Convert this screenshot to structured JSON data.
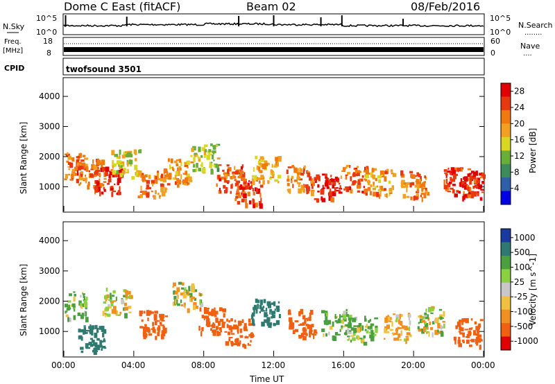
{
  "header": {
    "title": "Dome C East (fitACF)",
    "beam": "Beam 02",
    "date": "08/Feb/2016"
  },
  "nsky_panel": {
    "left_label": "N.Sky",
    "right_label": "N.Search",
    "right_dots": "........",
    "ticks": [
      "10^5",
      "10^0"
    ]
  },
  "freq_panel": {
    "left_label_top": "Freq.",
    "left_label_unit": "[MHz]",
    "left_ticks": [
      "18",
      "8"
    ],
    "right_label": "Nave",
    "right_dots": "....",
    "right_ticks": [
      "60",
      "0"
    ]
  },
  "cpid_panel": {
    "label": "CPID",
    "program": "twofsound 3501"
  },
  "colors": {
    "power_scale": [
      "#0000e6",
      "#2e5fa8",
      "#3d8a5a",
      "#6aae3a",
      "#d8d820",
      "#f2a020",
      "#f07a10",
      "#e83810",
      "#e00000"
    ],
    "velocity_scale": [
      "#e00000",
      "#f06010",
      "#f09020",
      "#f0c040",
      "#c8c8c8",
      "#8ad040",
      "#4aa040",
      "#2e7a70",
      "#1a3aa0"
    ]
  },
  "chart_data": [
    {
      "type": "heatmap",
      "title": "",
      "xlabel": "Time UT",
      "ylabel": "Slant Range [km]",
      "x_ticks": [
        "00:00",
        "04:00",
        "08:00",
        "12:00",
        "16:00",
        "20:00",
        "00:00"
      ],
      "y_ticks": [
        "1000",
        "2000",
        "3000",
        "4000"
      ],
      "x_range_hours": [
        0,
        24
      ],
      "y_range_km": [
        180,
        4600
      ],
      "colorbar_label": "Power [dB]",
      "colorbar_ticks": [
        "4",
        "8",
        "12",
        "16",
        "20",
        "24",
        "28"
      ],
      "colorbar_range": [
        0,
        30
      ],
      "sample_points": [
        {
          "t": 0.5,
          "r": 1700,
          "v": 22
        },
        {
          "t": 1.5,
          "r": 1500,
          "v": 24
        },
        {
          "t": 2.5,
          "r": 1250,
          "v": 26
        },
        {
          "t": 3.5,
          "r": 1800,
          "v": 16
        },
        {
          "t": 5.0,
          "r": 1100,
          "v": 22
        },
        {
          "t": 6.5,
          "r": 1500,
          "v": 20
        },
        {
          "t": 8.0,
          "r": 2000,
          "v": 14
        },
        {
          "t": 9.5,
          "r": 1300,
          "v": 24
        },
        {
          "t": 10.5,
          "r": 900,
          "v": 26
        },
        {
          "t": 11.5,
          "r": 1600,
          "v": 18
        },
        {
          "t": 13.5,
          "r": 1300,
          "v": 22
        },
        {
          "t": 15.0,
          "r": 1000,
          "v": 28
        },
        {
          "t": 16.5,
          "r": 1300,
          "v": 24
        },
        {
          "t": 18.0,
          "r": 1200,
          "v": 20
        },
        {
          "t": 20.0,
          "r": 1100,
          "v": 22
        },
        {
          "t": 22.5,
          "r": 1200,
          "v": 26
        },
        {
          "t": 23.5,
          "r": 1100,
          "v": 28
        }
      ]
    },
    {
      "type": "heatmap",
      "title": "",
      "xlabel": "Time UT",
      "ylabel": "Slant Range [km]",
      "x_ticks": [
        "00:00",
        "04:00",
        "08:00",
        "12:00",
        "16:00",
        "20:00",
        "00:00"
      ],
      "y_ticks": [
        "1000",
        "2000",
        "3000",
        "4000"
      ],
      "x_range_hours": [
        0,
        24
      ],
      "y_range_km": [
        180,
        4600
      ],
      "colorbar_label": "Velocity [m s^-1]",
      "colorbar_ticks": [
        "1000",
        "500",
        "100",
        "25",
        "-25",
        "-100",
        "-500",
        "-1000"
      ],
      "sample_points": [
        {
          "t": 0.5,
          "r": 1900,
          "v": 100
        },
        {
          "t": 1.5,
          "r": 800,
          "v": 500
        },
        {
          "t": 3.0,
          "r": 2000,
          "v": 0
        },
        {
          "t": 5.0,
          "r": 1300,
          "v": -500
        },
        {
          "t": 7.0,
          "r": 2200,
          "v": 0
        },
        {
          "t": 8.5,
          "r": 1400,
          "v": -500
        },
        {
          "t": 10.0,
          "r": 1000,
          "v": -500
        },
        {
          "t": 11.5,
          "r": 1700,
          "v": 500
        },
        {
          "t": 13.5,
          "r": 1300,
          "v": -500
        },
        {
          "t": 15.5,
          "r": 1300,
          "v": 100
        },
        {
          "t": 17.0,
          "r": 1100,
          "v": 100
        },
        {
          "t": 19.0,
          "r": 1200,
          "v": -100
        },
        {
          "t": 21.0,
          "r": 1400,
          "v": 0
        },
        {
          "t": 23.0,
          "r": 1000,
          "v": -500
        }
      ]
    }
  ]
}
